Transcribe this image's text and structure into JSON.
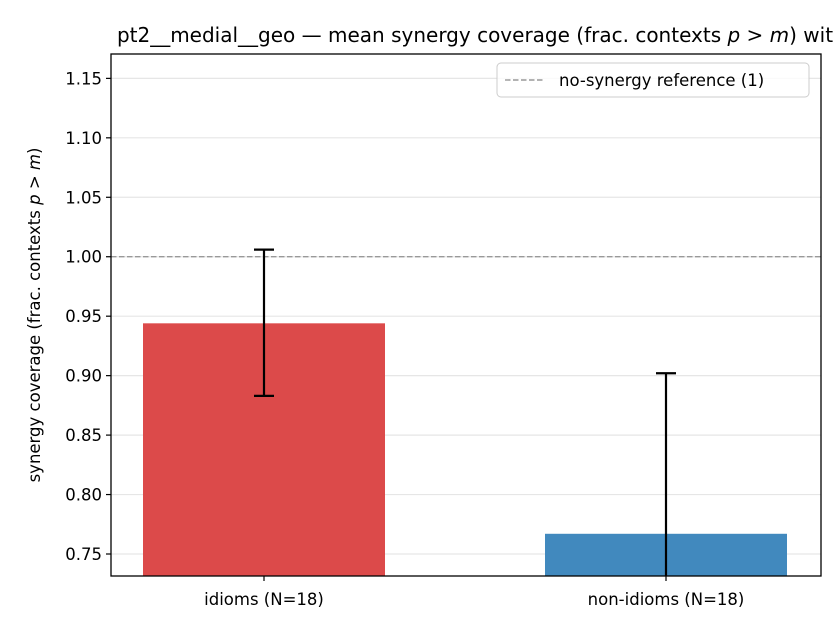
{
  "chart_data": {
    "type": "bar",
    "title_prefix": "pt2__medial__geo — mean synergy coverage  (frac. contexts ",
    "title_math": "p > m",
    "title_suffix": ") wit",
    "ylabel_prefix": "synergy coverage  (frac. contexts ",
    "ylabel_math": "p > m",
    "ylabel_suffix": ")",
    "xlabel": "",
    "categories": [
      "idioms (N=18)",
      "non-idioms (N=18)"
    ],
    "values": [
      0.944,
      0.767
    ],
    "error_low": [
      0.883,
      0.7
    ],
    "error_high": [
      1.006,
      0.902
    ],
    "bar_colors": [
      "#dc4a4a",
      "#4189be"
    ],
    "ylim": [
      0.7315,
      1.1705
    ],
    "yticks": [
      0.75,
      0.8,
      0.85,
      0.9,
      0.95,
      1.0,
      1.05,
      1.1,
      1.15
    ],
    "ytick_labels": [
      "0.75",
      "0.80",
      "0.85",
      "0.90",
      "0.95",
      "1.00",
      "1.05",
      "1.10",
      "1.15"
    ],
    "reference_line": {
      "y": 1.0,
      "label": "no-synergy reference (1)",
      "color": "#999999",
      "style": "dashed"
    },
    "grid": {
      "y": true,
      "x": false
    },
    "legend_position": "top-right"
  }
}
